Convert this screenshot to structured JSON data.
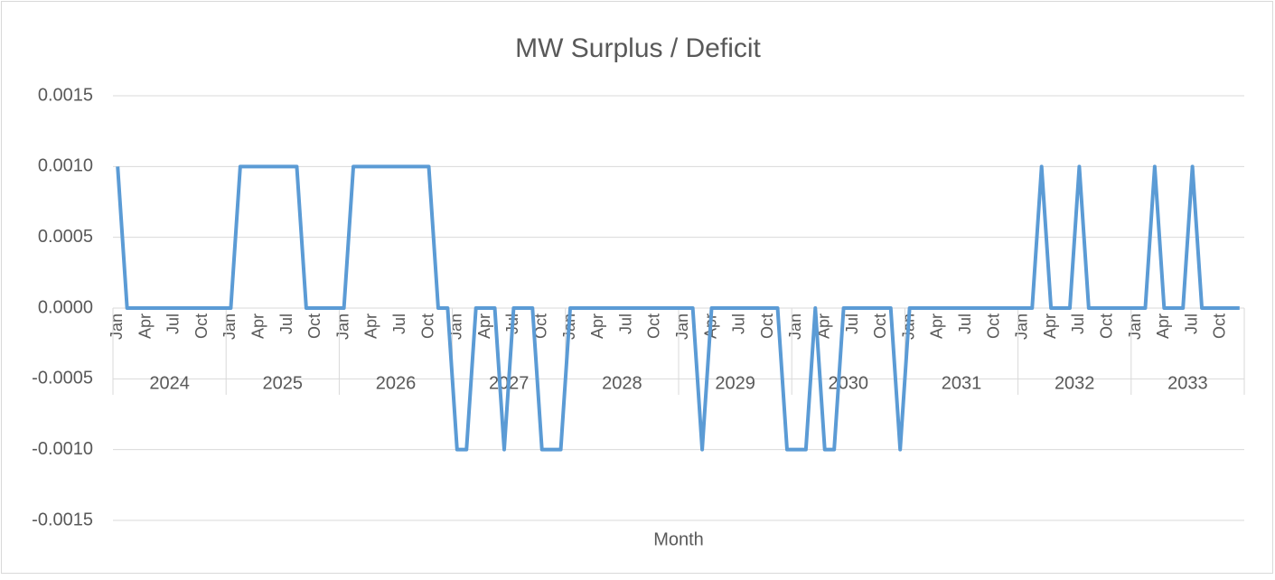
{
  "chart_data": {
    "type": "line",
    "title": "MW Surplus / Deficit",
    "x_label": "Month",
    "categories": [
      "Jan",
      null,
      null,
      "Apr",
      null,
      null,
      "Jul",
      null,
      null,
      "Oct",
      null,
      null,
      "Jan",
      null,
      null,
      "Apr",
      null,
      null,
      "Jul",
      null,
      null,
      "Oct",
      null,
      null,
      "Jan",
      null,
      null,
      "Apr",
      null,
      null,
      "Jul",
      null,
      null,
      "Oct",
      null,
      null,
      "Jan",
      null,
      null,
      "Apr",
      null,
      null,
      "Jul",
      null,
      null,
      "Oct",
      null,
      null,
      "Jan",
      null,
      null,
      "Apr",
      null,
      null,
      "Jul",
      null,
      null,
      "Oct",
      null,
      null,
      "Jan",
      null,
      null,
      "Apr",
      null,
      null,
      "Jul",
      null,
      null,
      "Oct",
      null,
      null,
      "Jan",
      null,
      null,
      "Apr",
      null,
      null,
      "Jul",
      null,
      null,
      "Oct",
      null,
      null,
      "Jan",
      null,
      null,
      "Apr",
      null,
      null,
      "Jul",
      null,
      null,
      "Oct",
      null,
      null,
      "Jan",
      null,
      null,
      "Apr",
      null,
      null,
      "Jul",
      null,
      null,
      "Oct",
      null,
      null,
      "Jan",
      null,
      null,
      "Apr",
      null,
      null,
      "Jul",
      null,
      null,
      "Oct",
      null,
      null
    ],
    "year_groups": [
      "2024",
      "2025",
      "2026",
      "2027",
      "2028",
      "2029",
      "2030",
      "2031",
      "2032",
      "2033"
    ],
    "series": [
      {
        "name": "MW Surplus / Deficit",
        "color": "#5b9bd5",
        "values": [
          0.001,
          0,
          0,
          0,
          0,
          0,
          0,
          0,
          0,
          0,
          0,
          0,
          0,
          0.001,
          0.001,
          0.001,
          0.001,
          0.001,
          0.001,
          0.001,
          0,
          0,
          0,
          0,
          0,
          0.001,
          0.001,
          0.001,
          0.001,
          0.001,
          0.001,
          0.001,
          0.001,
          0.001,
          0,
          0,
          -0.001,
          -0.001,
          0,
          0,
          0,
          -0.001,
          0,
          0,
          0,
          -0.001,
          -0.001,
          -0.001,
          0,
          0,
          0,
          0,
          0,
          0,
          0,
          0,
          0,
          0,
          0,
          0,
          0,
          0,
          -0.001,
          0,
          0,
          0,
          0,
          0,
          0,
          0,
          0,
          -0.001,
          -0.001,
          -0.001,
          0,
          -0.001,
          -0.001,
          0,
          0,
          0,
          0,
          0,
          0,
          -0.001,
          0,
          0,
          0,
          0,
          0,
          0,
          0,
          0,
          0,
          0,
          0,
          0,
          0,
          0,
          0.001,
          0,
          0,
          0,
          0.001,
          0,
          0,
          0,
          0,
          0,
          0,
          0,
          0.001,
          0,
          0,
          0,
          0.001,
          0,
          0,
          0,
          0,
          0
        ]
      }
    ],
    "ylim": [
      -0.0015,
      0.0015
    ],
    "yticks": [
      {
        "value": -0.0015,
        "label": "-0.0015"
      },
      {
        "value": -0.001,
        "label": "-0.0010"
      },
      {
        "value": -0.0005,
        "label": "-0.0005"
      },
      {
        "value": 0,
        "label": "0.0000"
      },
      {
        "value": 0.0005,
        "label": "0.0005"
      },
      {
        "value": 0.001,
        "label": "0.0010"
      },
      {
        "value": 0.0015,
        "label": "0.0015"
      }
    ],
    "grid": true
  }
}
